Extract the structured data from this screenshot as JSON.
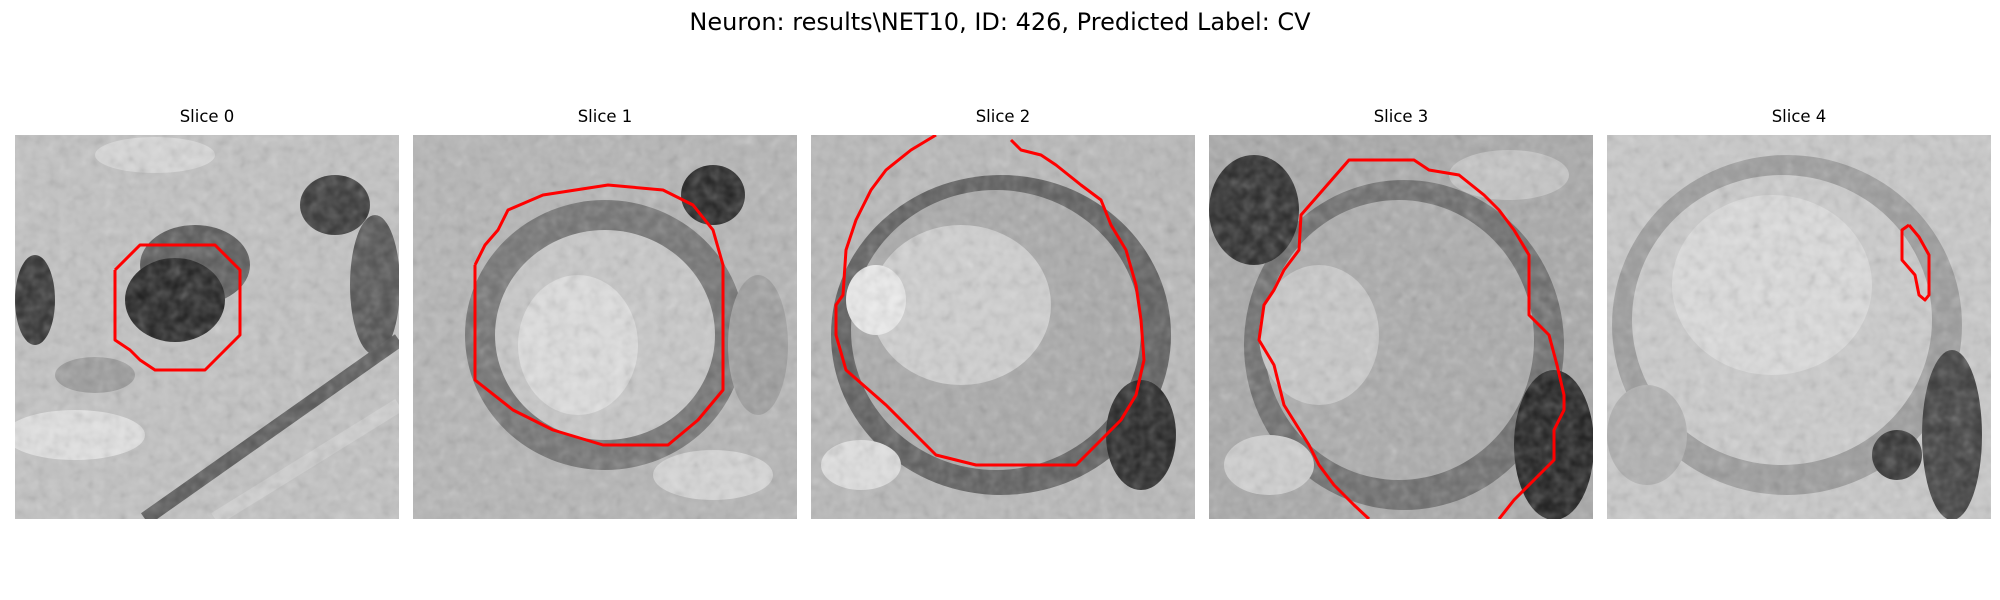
{
  "figure": {
    "title": "Neuron: results\\NET10, ID: 426, Predicted Label: CV"
  },
  "panels": [
    {
      "title": "Slice 0"
    },
    {
      "title": "Slice 1"
    },
    {
      "title": "Slice 2"
    },
    {
      "title": "Slice 3"
    },
    {
      "title": "Slice 4"
    }
  ],
  "colors": {
    "contour": "#ff0000",
    "background": "#ffffff"
  }
}
